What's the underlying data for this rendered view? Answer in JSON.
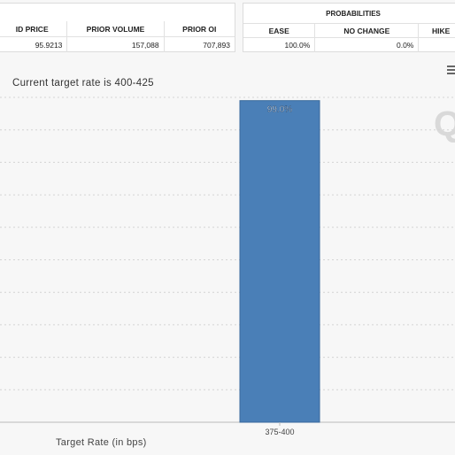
{
  "left_table": {
    "headers": [
      "ID PRICE",
      "PRIOR VOLUME",
      "PRIOR OI"
    ],
    "values": [
      "95.9213",
      "157,088",
      "707,893"
    ]
  },
  "right_table": {
    "title": "PROBABILITIES",
    "headers": [
      "EASE",
      "NO CHANGE",
      "HIKE"
    ],
    "values": [
      "100.0%",
      "0.0%",
      ""
    ]
  },
  "watermark": "Q",
  "menu_icon": "hamburger-menu-icon",
  "chart_data": {
    "type": "bar",
    "title": "Current target rate is 400-425",
    "xlabel": "Target Rate (in bps)",
    "ylabel": "",
    "categories": [
      "375-400"
    ],
    "values": [
      99.0
    ],
    "data_labels": [
      "99.0%"
    ],
    "ylim": [
      0,
      100
    ],
    "grid": true,
    "bar_color": "#4a7fb7"
  }
}
